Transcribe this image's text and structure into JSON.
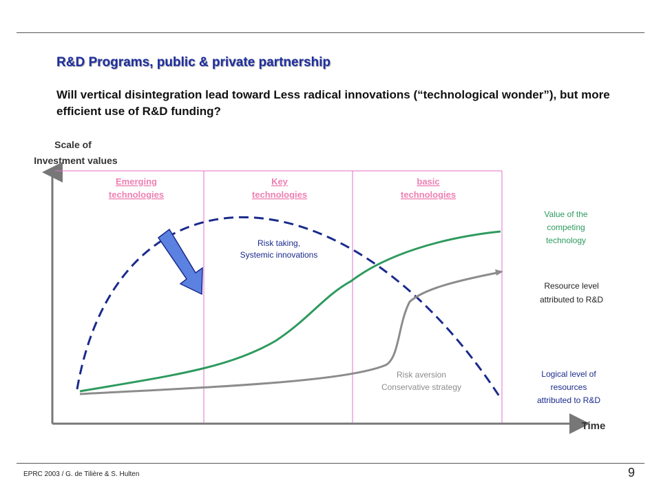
{
  "header": {
    "title": "R&D Programs, public & private partnership",
    "subtitle": "Will vertical disintegration lead toward Less radical innovations (“technological wonder”), but more efficient use of R&D funding?"
  },
  "diagram": {
    "y_axis_label_line1": "Scale of",
    "y_axis_label_line2": "Investment values",
    "x_axis_label": "Time",
    "phases": [
      {
        "line1": "Emerging",
        "line2": "technologies"
      },
      {
        "line1": "Key",
        "line2": "technologies"
      },
      {
        "line1": "basic",
        "line2": "technologies"
      }
    ],
    "annotations": {
      "risk_taking_line1": "Risk taking,",
      "risk_taking_line2": "Systemic innovations",
      "risk_aversion_line1": "Risk aversion",
      "risk_aversion_line2": "Conservative strategy"
    },
    "legend": {
      "green_line1": "Value of the",
      "green_line2": "competing",
      "green_line3": "technology",
      "gray_line1": "Resource level",
      "gray_line2": "attributed to R&D",
      "blue_line1": "Logical level of",
      "blue_line2": "resources",
      "blue_line3": "attributed to R&D"
    },
    "colors": {
      "green_curve": "#2e9a5e",
      "gray_curve": "#8c8c8c",
      "blue_dashed_curve": "#1a2a8c",
      "phase_divider": "#e070c8",
      "phase_label": "#ee7fb3",
      "arrow_fill": "#5b82e0"
    }
  },
  "footer": {
    "credit": "EPRC 2003 / G. de Tilière & S. Hulten",
    "page_number": "9"
  }
}
